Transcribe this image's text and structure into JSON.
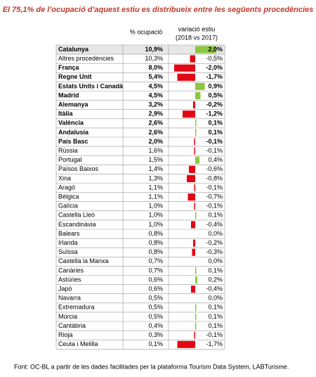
{
  "title": "El 75,1% de l’ocupació d’aquest estiu es distribueix entre les següents procedències",
  "header": {
    "share": "% ocupació",
    "change": "variació estiu",
    "change_sub": "(2018 vs 2017)"
  },
  "colors": {
    "positive": "#8cc63f",
    "negative": "#e30613"
  },
  "rows": [
    {
      "name": "Catalunya",
      "share": "10,9%",
      "change": 2.0,
      "change_label": "2,0%",
      "bold": true
    },
    {
      "name": "Altres procedències",
      "share": "10,3%",
      "change": -0.5,
      "change_label": "-0,5%",
      "bold": false
    },
    {
      "name": "França",
      "share": "8,0%",
      "change": -2.0,
      "change_label": "-2,0%",
      "bold": true
    },
    {
      "name": "Regne Unit",
      "share": "5,4%",
      "change": -1.7,
      "change_label": "-1,7%",
      "bold": true
    },
    {
      "name": "Estats Units i Canadà",
      "share": "4,5%",
      "change": 0.9,
      "change_label": "0,9%",
      "bold": true
    },
    {
      "name": "Madrid",
      "share": "4,5%",
      "change": 0.5,
      "change_label": "0,5%",
      "bold": true
    },
    {
      "name": "Alemanya",
      "share": "3,2%",
      "change": -0.2,
      "change_label": "-0,2%",
      "bold": true
    },
    {
      "name": "Itàlia",
      "share": "2,9%",
      "change": -1.2,
      "change_label": "-1,2%",
      "bold": true
    },
    {
      "name": "València",
      "share": "2,6%",
      "change": 0.1,
      "change_label": "0,1%",
      "bold": true
    },
    {
      "name": "Andalusia",
      "share": "2,6%",
      "change": 0.1,
      "change_label": "0,1%",
      "bold": true
    },
    {
      "name": "País Basc",
      "share": "2,0%",
      "change": -0.1,
      "change_label": "-0,1%",
      "bold": true
    },
    {
      "name": "Rússia",
      "share": "1,6%",
      "change": -0.1,
      "change_label": "-0,1%",
      "bold": false
    },
    {
      "name": "Portugal",
      "share": "1,5%",
      "change": 0.4,
      "change_label": "0,4%",
      "bold": false
    },
    {
      "name": "Països Baixos",
      "share": "1,4%",
      "change": -0.6,
      "change_label": "-0,6%",
      "bold": false
    },
    {
      "name": "Xina",
      "share": "1,3%",
      "change": -0.8,
      "change_label": "-0,8%",
      "bold": false
    },
    {
      "name": "Aragó",
      "share": "1,1%",
      "change": -0.1,
      "change_label": "-0,1%",
      "bold": false
    },
    {
      "name": "Bèlgica",
      "share": "1,1%",
      "change": -0.7,
      "change_label": "-0,7%",
      "bold": false
    },
    {
      "name": "Galícia",
      "share": "1,0%",
      "change": -0.1,
      "change_label": "-0,1%",
      "bold": false
    },
    {
      "name": "Castella Lleó",
      "share": "1,0%",
      "change": 0.1,
      "change_label": "0,1%",
      "bold": false
    },
    {
      "name": "Escandinàvia",
      "share": "1,0%",
      "change": -0.4,
      "change_label": "-0,4%",
      "bold": false
    },
    {
      "name": "Balears",
      "share": "0,8%",
      "change": 0.0,
      "change_label": "0,0%",
      "bold": false
    },
    {
      "name": "Irlanda",
      "share": "0,8%",
      "change": -0.2,
      "change_label": "-0,2%",
      "bold": false
    },
    {
      "name": "Suïssa",
      "share": "0,8%",
      "change": -0.3,
      "change_label": "-0,3%",
      "bold": false
    },
    {
      "name": "Castella la Manxa",
      "share": "0,7%",
      "change": 0.0,
      "change_label": "0,0%",
      "bold": false
    },
    {
      "name": "Canàries",
      "share": "0,7%",
      "change": 0.1,
      "change_label": "0,1%",
      "bold": false
    },
    {
      "name": "Astúries",
      "share": "0,6%",
      "change": 0.2,
      "change_label": "0,2%",
      "bold": false
    },
    {
      "name": "Japó",
      "share": "0,6%",
      "change": -0.4,
      "change_label": "-0,4%",
      "bold": false
    },
    {
      "name": "Navarra",
      "share": "0,5%",
      "change": 0.0,
      "change_label": "0,0%",
      "bold": false
    },
    {
      "name": "Extremadura",
      "share": "0,5%",
      "change": 0.1,
      "change_label": "0,1%",
      "bold": false
    },
    {
      "name": "Múrcia",
      "share": "0,5%",
      "change": 0.1,
      "change_label": "0,1%",
      "bold": false
    },
    {
      "name": "Cantàbria",
      "share": "0,4%",
      "change": 0.1,
      "change_label": "0,1%",
      "bold": false
    },
    {
      "name": "Rioja",
      "share": "0,3%",
      "change": -0.1,
      "change_label": "-0,1%",
      "bold": false
    },
    {
      "name": "Ceuta i Melilla",
      "share": "0,1%",
      "change": -1.7,
      "change_label": "-1,7%",
      "bold": false
    }
  ],
  "source": "Font: OC-BL a partir de les dades facilitades per la plataforma Tourism Data System, LABTurisme."
}
